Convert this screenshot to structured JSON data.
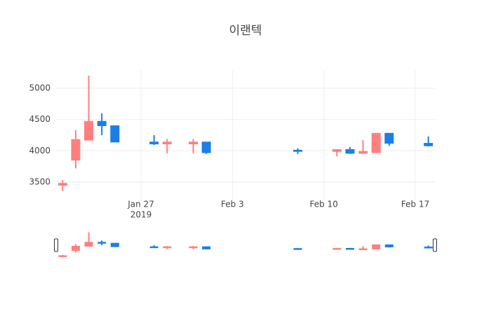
{
  "chart_data": {
    "type": "candlestick",
    "title": "이랜텍",
    "x": [
      "2019-01-21",
      "2019-01-22",
      "2019-01-23",
      "2019-01-24",
      "2019-01-25",
      "2019-01-28",
      "2019-01-29",
      "2019-01-31",
      "2019-02-01",
      "2019-02-08",
      "2019-02-11",
      "2019-02-12",
      "2019-02-13",
      "2019-02-14",
      "2019-02-15",
      "2019-02-18"
    ],
    "open": [
      3450,
      3850,
      4170,
      4470,
      4400,
      4140,
      4110,
      4110,
      4140,
      4010,
      3990,
      4020,
      3960,
      3970,
      4280,
      4120
    ],
    "high": [
      3530,
      4330,
      5200,
      4600,
      4400,
      4250,
      4190,
      4190,
      4140,
      4040,
      4020,
      4060,
      4170,
      4280,
      4280,
      4230
    ],
    "low": [
      3360,
      3720,
      4170,
      4250,
      4140,
      4090,
      3960,
      3960,
      3950,
      3950,
      3910,
      3950,
      3960,
      3970,
      4080,
      4070
    ],
    "close": [
      3480,
      4180,
      4470,
      4400,
      4140,
      4110,
      4140,
      4140,
      3970,
      3990,
      4020,
      3960,
      3990,
      4280,
      4120,
      4080
    ],
    "increasing_color": "#ff7f7f",
    "decreasing_color": "#1a7fe8",
    "xlim": [
      "2019-01-20T12:00",
      "2019-02-18T12:00"
    ],
    "xticks": [
      {
        "value": "2019-01-27",
        "label": "Jan 27"
      },
      {
        "value": "2019-02-03",
        "label": "Feb 3"
      },
      {
        "value": "2019-02-10",
        "label": "Feb 10"
      },
      {
        "value": "2019-02-17",
        "label": "Feb 17"
      }
    ],
    "x_year_label": "2019",
    "ylim": [
      3220,
      5290
    ],
    "yticks": [
      3500,
      4000,
      4500,
      5000
    ],
    "grid": true,
    "range_slider": true
  }
}
